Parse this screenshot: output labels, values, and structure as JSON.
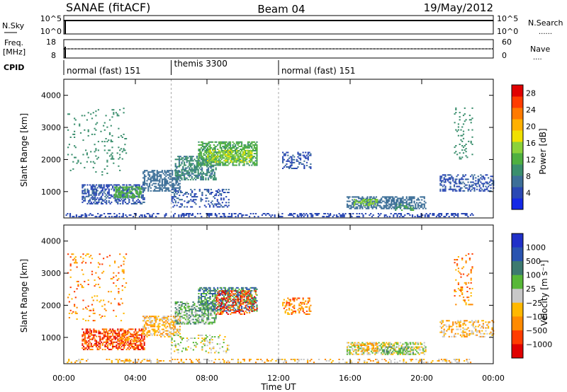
{
  "header": {
    "title": "SANAE (fitACF)",
    "beam": "Beam 04",
    "date": "19/May/2012"
  },
  "strip_labels": {
    "nsky": "N.Sky",
    "nsky_hi": "10^5",
    "nsky_lo": "10^0",
    "nsearch": "N.Search",
    "nsearch_hi": "10^5",
    "nsearch_lo": "10^0",
    "freq_top": "Freq.",
    "freq_unit": "[MHz]",
    "freq_hi": "18",
    "freq_lo": "8",
    "nave": "Nave",
    "nave_hi": "60",
    "nave_lo": "0",
    "cpid": "CPID"
  },
  "cpid_segments": [
    {
      "start": 0,
      "end": 6,
      "label": "normal (fast) 151"
    },
    {
      "start": 6,
      "end": 12,
      "label": "themis 3300"
    },
    {
      "start": 12,
      "end": 24,
      "label": "normal (fast) 151"
    }
  ],
  "colors": {
    "power_scale": [
      "#1428e6",
      "#2a48b4",
      "#3d6f98",
      "#3b8f6e",
      "#4fb040",
      "#8cd23a",
      "#f0e000",
      "#ffb000",
      "#ff7a00",
      "#ff3c00",
      "#e00000"
    ],
    "velocity_scale": [
      "#2030c8",
      "#2a54b0",
      "#3d7a70",
      "#58b838",
      "#c8c8c8",
      "#ffb800",
      "#ff8a00",
      "#ff3c00",
      "#e00000"
    ]
  },
  "chart_data": [
    {
      "type": "heatmap",
      "panel": "power",
      "xlabel": "",
      "ylabel": "Slant Range [km]",
      "xlim": [
        0,
        24
      ],
      "ylim": [
        180,
        4500
      ],
      "y_ticks": [
        "1000",
        "2000",
        "3000",
        "4000"
      ],
      "colorbar_label": "Power [dB]",
      "colorbar_ticks": [
        "4",
        "8",
        "12",
        "16",
        "20",
        "24",
        "28"
      ],
      "colorbar_range": [
        0,
        30
      ],
      "regions": [
        {
          "t0": 0.1,
          "t1": 22.9,
          "r0": 200,
          "r1": 300,
          "level": 3,
          "density": 0.35
        },
        {
          "t0": 1.0,
          "t1": 4.5,
          "r0": 600,
          "r1": 1200,
          "level": 4,
          "density": 0.5
        },
        {
          "t0": 2.8,
          "t1": 4.3,
          "r0": 800,
          "r1": 1150,
          "level": 12,
          "density": 0.6
        },
        {
          "t0": 4.4,
          "t1": 6.5,
          "r0": 1000,
          "r1": 1650,
          "level": 6,
          "density": 0.55
        },
        {
          "t0": 6.2,
          "t1": 8.5,
          "r0": 1350,
          "r1": 2100,
          "level": 8,
          "density": 0.55
        },
        {
          "t0": 7.5,
          "t1": 10.8,
          "r0": 1800,
          "r1": 2550,
          "level": 11,
          "density": 0.6
        },
        {
          "t0": 8.0,
          "t1": 10.5,
          "r0": 1900,
          "r1": 2300,
          "level": 16,
          "density": 0.45
        },
        {
          "t0": 6.0,
          "t1": 9.2,
          "r0": 500,
          "r1": 1050,
          "level": 4,
          "density": 0.25
        },
        {
          "t0": 0.2,
          "t1": 3.5,
          "r0": 1500,
          "r1": 3600,
          "level": 9,
          "density": 0.06
        },
        {
          "t0": 12.2,
          "t1": 13.8,
          "r0": 1700,
          "r1": 2200,
          "level": 4,
          "density": 0.35
        },
        {
          "t0": 15.8,
          "t1": 20.2,
          "r0": 450,
          "r1": 820,
          "level": 6,
          "density": 0.55
        },
        {
          "t0": 16.2,
          "t1": 17.5,
          "r0": 550,
          "r1": 750,
          "level": 14,
          "density": 0.5
        },
        {
          "t0": 18.5,
          "t1": 19.5,
          "r0": 400,
          "r1": 600,
          "level": 10,
          "density": 0.4
        },
        {
          "t0": 21.0,
          "t1": 24.0,
          "r0": 1000,
          "r1": 1500,
          "level": 4,
          "density": 0.35
        },
        {
          "t0": 21.8,
          "t1": 22.8,
          "r0": 2000,
          "r1": 3600,
          "level": 9,
          "density": 0.12
        }
      ]
    },
    {
      "type": "heatmap",
      "panel": "velocity",
      "xlabel": "Time UT",
      "ylabel": "Slant Range [km]",
      "xlim": [
        0,
        24
      ],
      "ylim": [
        180,
        4500
      ],
      "x_ticks": [
        "00:00",
        "04:00",
        "08:00",
        "12:00",
        "16:00",
        "20:00",
        "00:00"
      ],
      "y_ticks": [
        "1000",
        "2000",
        "3000",
        "4000"
      ],
      "colorbar_label": "Velocity [m s⁻¹]",
      "colorbar_ticks": [
        "1000",
        "500",
        "100",
        "25",
        "−25",
        "−100",
        "−500",
        "−1000"
      ],
      "regions": [
        {
          "t0": 0.1,
          "t1": 22.9,
          "r0": 200,
          "r1": 300,
          "level": -1,
          "density": 0.25
        },
        {
          "t0": 1.0,
          "t1": 4.5,
          "r0": 600,
          "r1": 1250,
          "level": -3,
          "density": 0.5
        },
        {
          "t0": 3.0,
          "t1": 4.2,
          "r0": 800,
          "r1": 1100,
          "level": -2,
          "density": 0.45
        },
        {
          "t0": 4.4,
          "t1": 6.5,
          "r0": 1000,
          "r1": 1650,
          "level": -1,
          "density": 0.5
        },
        {
          "t0": 6.2,
          "t1": 8.5,
          "r0": 1400,
          "r1": 2100,
          "level": 1,
          "density": 0.5
        },
        {
          "t0": 7.5,
          "t1": 10.8,
          "r0": 1800,
          "r1": 2550,
          "level": 2,
          "density": 0.5
        },
        {
          "t0": 8.5,
          "t1": 10.8,
          "r0": 1700,
          "r1": 2450,
          "level": -3,
          "density": 0.35
        },
        {
          "t0": 6.0,
          "t1": 9.2,
          "r0": 500,
          "r1": 1050,
          "level": 0,
          "density": 0.2
        },
        {
          "t0": 0.2,
          "t1": 3.5,
          "r0": 1500,
          "r1": 3600,
          "level": -2,
          "density": 0.06
        },
        {
          "t0": 12.2,
          "t1": 13.8,
          "r0": 1700,
          "r1": 2200,
          "level": -2,
          "density": 0.3
        },
        {
          "t0": 15.8,
          "t1": 20.2,
          "r0": 450,
          "r1": 820,
          "level": 0,
          "density": 0.5
        },
        {
          "t0": 16.2,
          "t1": 17.5,
          "r0": 550,
          "r1": 800,
          "level": -1,
          "density": 0.45
        },
        {
          "t0": 17.5,
          "t1": 19.5,
          "r0": 450,
          "r1": 700,
          "level": 1,
          "density": 0.4
        },
        {
          "t0": 21.0,
          "t1": 24.0,
          "r0": 1000,
          "r1": 1500,
          "level": -1,
          "density": 0.35
        },
        {
          "t0": 21.8,
          "t1": 22.8,
          "r0": 2000,
          "r1": 3600,
          "level": -2,
          "density": 0.12
        }
      ]
    }
  ]
}
